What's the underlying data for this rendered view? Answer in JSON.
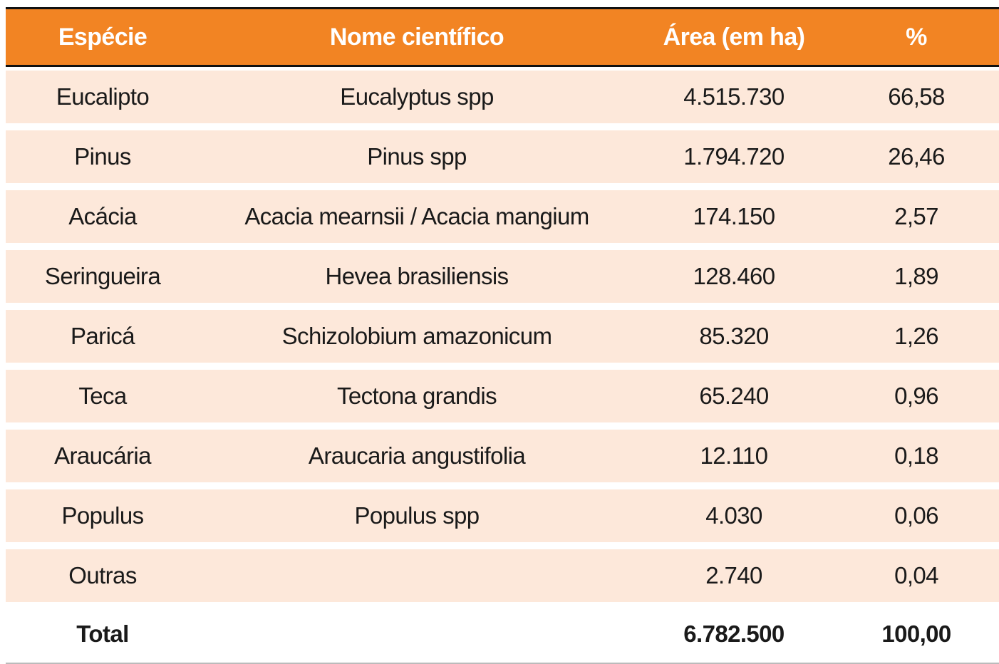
{
  "table": {
    "header": [
      "Espécie",
      "Nome científico",
      "Área (em ha)",
      "%"
    ],
    "rows": [
      {
        "especie": "Eucalipto",
        "nome": "Eucalyptus spp",
        "area": "4.515.730",
        "pct": "66,58"
      },
      {
        "especie": "Pinus",
        "nome": "Pinus spp",
        "area": "1.794.720",
        "pct": "26,46"
      },
      {
        "especie": "Acácia",
        "nome": "Acacia mearnsii / Acacia mangium",
        "area": "174.150",
        "pct": "2,57"
      },
      {
        "especie": "Seringueira",
        "nome": "Hevea brasiliensis",
        "area": "128.460",
        "pct": "1,89"
      },
      {
        "especie": "Paricá",
        "nome": "Schizolobium amazonicum",
        "area": "85.320",
        "pct": "1,26"
      },
      {
        "especie": "Teca",
        "nome": "Tectona grandis",
        "area": "65.240",
        "pct": "0,96"
      },
      {
        "especie": "Araucária",
        "nome": "Araucaria angustifolia",
        "area": "12.110",
        "pct": "0,18"
      },
      {
        "especie": "Populus",
        "nome": "Populus spp",
        "area": "4.030",
        "pct": "0,06"
      },
      {
        "especie": "Outras",
        "area": "2.740",
        "pct": "0,04"
      }
    ],
    "total": {
      "especie": "Total",
      "area": "6.782.500",
      "pct": "100,00"
    }
  }
}
